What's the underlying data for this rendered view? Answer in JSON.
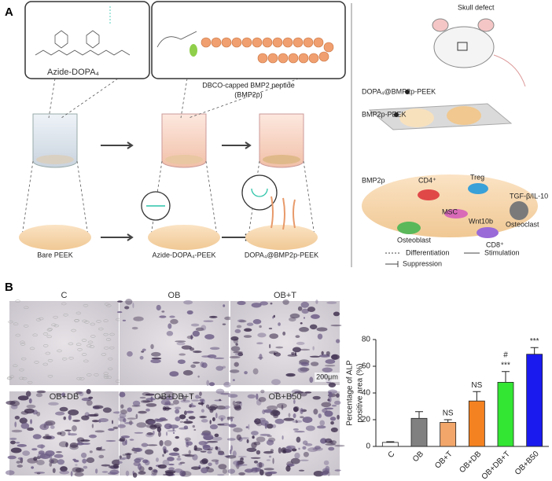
{
  "panel_a": {
    "label": "A",
    "structures": [
      "Azide-DOPA₄",
      "DBCO-capped BMP2 peptide",
      "(BMP2p)"
    ],
    "stages": [
      "Bare PEEK",
      "Azide-DOPA₄-PEEK",
      "DOPA₄@BMP2p-PEEK"
    ],
    "implant": {
      "title": "Skull defect",
      "coated": "DOPA₄@BMP2p-PEEK",
      "control": "BMP2p-PEEK"
    },
    "mechanism": {
      "nodes": [
        "BMP2p",
        "CD4⁺",
        "Treg",
        "TGF-β/IL-10",
        "MSC",
        "Wnt10b",
        "Osteoclast",
        "Osteoblast",
        "CD8⁺"
      ],
      "legend": [
        "Differentiation",
        "Stimulation",
        "Suppression"
      ]
    }
  },
  "panel_b": {
    "label": "B",
    "images": [
      "C",
      "OB",
      "OB+T",
      "OB+DB",
      "OB+DB+T",
      "OB+B50"
    ],
    "scale_bar": "200μm"
  },
  "chart_data": {
    "type": "bar",
    "ylabel": [
      "Percentage of ALP",
      "positive area (%)"
    ],
    "categories": [
      "C",
      "OB",
      "OB+T",
      "OB+DB",
      "OB+DB+T",
      "OB+B50"
    ],
    "values": [
      3,
      21,
      18,
      34,
      48,
      69
    ],
    "errors": [
      0.5,
      5,
      2,
      7,
      8,
      5
    ],
    "colors": [
      "#ffffff",
      "#808080",
      "#f2a66a",
      "#f58220",
      "#33e633",
      "#1a1aef"
    ],
    "annotations": [
      {
        "category": "OB+T",
        "texts": [
          "NS"
        ]
      },
      {
        "category": "OB+DB",
        "texts": [
          "NS"
        ]
      },
      {
        "category": "OB+DB+T",
        "texts": [
          "***",
          "#"
        ]
      },
      {
        "category": "OB+B50",
        "texts": [
          "***"
        ]
      }
    ],
    "ylim": [
      0,
      80
    ],
    "yticks": [
      0,
      20,
      40,
      60,
      80
    ]
  }
}
